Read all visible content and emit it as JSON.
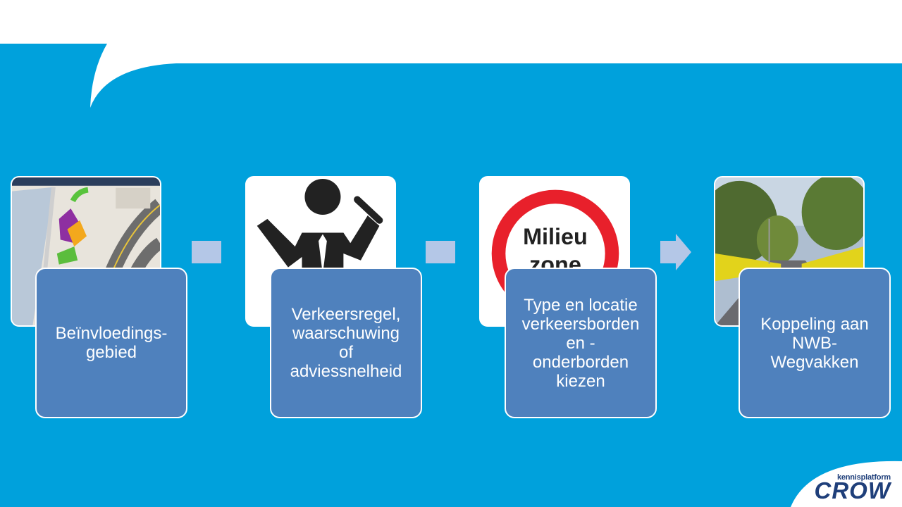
{
  "colors": {
    "background": "#00a1dc",
    "step_fill": "#4f81bd",
    "connector": "#b4c7e7",
    "logo": "#1f3f7a"
  },
  "steps": [
    {
      "label": "Beïnvloedings-\ngebied",
      "image_icon": "map-image"
    },
    {
      "label": "Verkeersregel,\nwaarschuwing\nof\nadviessnelheid",
      "image_icon": "traffic-controller-icon"
    },
    {
      "label": "Type en locatie\nverkeersborden\nen -\nonderborden\nkiezen",
      "image_icon": "milieuzone-sign-image"
    },
    {
      "label": "Koppeling aan\nNWB-\nWegvakken",
      "image_icon": "road-photo-image"
    }
  ],
  "sign": {
    "line1": "Milieu",
    "line2": "zone"
  },
  "logo": {
    "small": "kennisplatform",
    "big": "CROW"
  }
}
